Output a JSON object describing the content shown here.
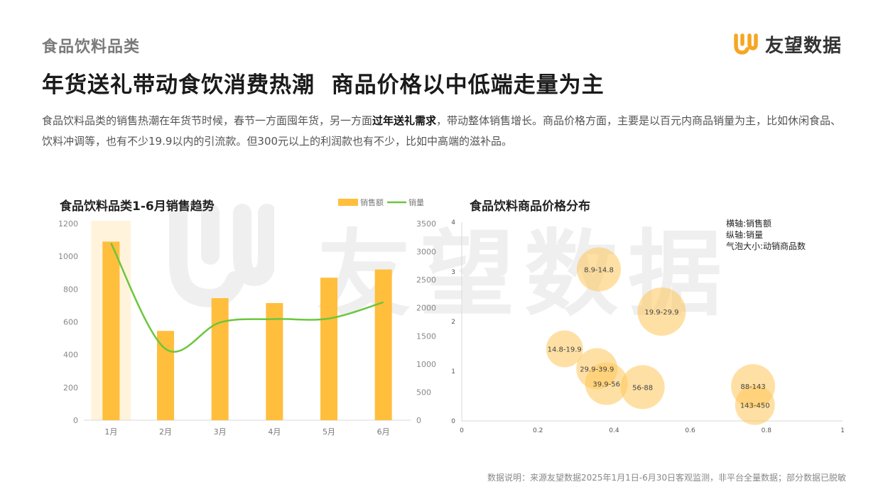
{
  "header": {
    "category": "食品饮料品类",
    "logo_text": "友望数据",
    "headline": "年货送礼带动食饮消费热潮  商品价格以中低端走量为主",
    "desc_part1": "食品饮料品类的销售热潮在年货节时候，春节一方面囤年货，另一方面",
    "desc_bold": "过年送礼需求",
    "desc_part2": "，带动整体销售增长。商品价格方面，主要是以百元内商品销量为主，比如休闲食品、饮料冲调等，也有不少19.9以内的引流款。但300元以上的利润款也有不少，比如中高端的滋补品。"
  },
  "watermark_text": "友望数据",
  "colors": {
    "bar": "#ffbe3c",
    "line": "#6cc63c",
    "highlight": "#fff3dc",
    "bubble": "#ffc75a",
    "brand": "#f5a623"
  },
  "footer": {
    "source": "数据说明：来源友望数据2025年1月1日-6月30日客观监测，非平台全量数据；部分数据已脱敏"
  },
  "chart_data": [
    {
      "type": "bar",
      "title": "食品饮料品类1-6月销售趋势",
      "categories": [
        "1月",
        "2月",
        "3月",
        "4月",
        "5月",
        "6月"
      ],
      "series": [
        {
          "name": "销售额",
          "type": "bar",
          "axis": "left",
          "values": [
            1090,
            545,
            745,
            715,
            870,
            920
          ]
        },
        {
          "name": "销量",
          "type": "line",
          "axis": "right",
          "values": [
            3150,
            1270,
            1740,
            1800,
            1810,
            2100
          ]
        }
      ],
      "highlight_category": "1月",
      "y_left": {
        "min": 0,
        "max": 1200,
        "ticks": [
          0,
          200,
          400,
          600,
          800,
          1000,
          1200
        ]
      },
      "y_right": {
        "min": 0,
        "max": 3500,
        "ticks": [
          0,
          500,
          1000,
          1500,
          2000,
          2500,
          3000,
          3500
        ]
      },
      "legend_position": "top-right"
    },
    {
      "type": "scatter",
      "title": "食品饮料商品价格分布",
      "annotations": [
        "横轴:销售额",
        "纵轴:销量",
        "气泡大小:动销商品数"
      ],
      "xlim": [
        0,
        1
      ],
      "ylim": [
        0,
        4
      ],
      "x_ticks": [
        "0",
        "0.2",
        "0.4",
        "0.6",
        "0.8",
        "1"
      ],
      "y_ticks": [
        "0",
        "1",
        "2",
        "3",
        "4"
      ],
      "points": [
        {
          "label": "8.9-14.8",
          "x": 0.36,
          "y": 3.05,
          "size": 0.85
        },
        {
          "label": "19.9-29.9",
          "x": 0.525,
          "y": 2.2,
          "size": 1.0
        },
        {
          "label": "14.8-19.9",
          "x": 0.27,
          "y": 1.45,
          "size": 0.6
        },
        {
          "label": "29.9-39.9",
          "x": 0.355,
          "y": 1.05,
          "size": 0.75
        },
        {
          "label": "39.9-56",
          "x": 0.38,
          "y": 0.75,
          "size": 0.8
        },
        {
          "label": "56-88",
          "x": 0.475,
          "y": 0.68,
          "size": 0.85
        },
        {
          "label": "88-143",
          "x": 0.765,
          "y": 0.7,
          "size": 0.85
        },
        {
          "label": "143-450",
          "x": 0.77,
          "y": 0.32,
          "size": 0.7
        }
      ]
    }
  ]
}
